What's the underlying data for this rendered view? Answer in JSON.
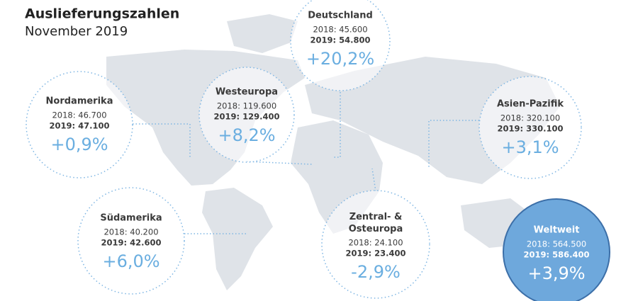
{
  "header": {
    "title": "Auslieferungszahlen",
    "subtitle": "November 2019"
  },
  "regions": [
    {
      "name": "Deutschland",
      "line2018": "2018: 45.600",
      "line2019": "2019: 54.800",
      "change": "+20,2%"
    },
    {
      "name": "Westeuropa",
      "line2018": "2018: 119.600",
      "line2019": "2019: 129.400",
      "change": "+8,2%"
    },
    {
      "name": "Nordamerika",
      "line2018": "2018: 46.700",
      "line2019": "2019: 47.100",
      "change": "+0,9%"
    },
    {
      "name": "Asien-Pazifik",
      "line2018": "2018: 320.100",
      "line2019": "2019: 330.100",
      "change": "+3,1%"
    },
    {
      "name": "Südamerika",
      "line2018": "2018: 40.200",
      "line2019": "2019: 42.600",
      "change": "+6,0%"
    },
    {
      "name": "Zentral- & Osteuropa",
      "line2018": "2018: 24.100",
      "line2019": "2019: 23.400",
      "change": "-2,9%"
    },
    {
      "name": "Weltweit",
      "line2018": "2018: 564.500",
      "line2019": "2019: 586.400",
      "change": "+3,9%"
    }
  ]
}
